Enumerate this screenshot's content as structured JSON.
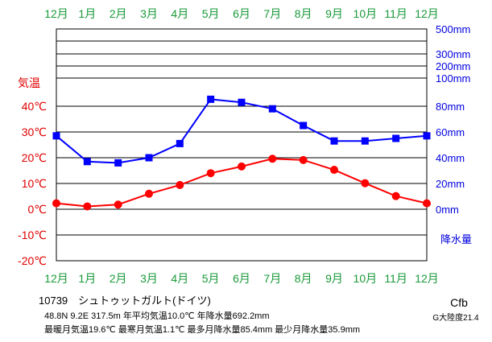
{
  "chart_data": {
    "type": "line",
    "months": [
      "12月",
      "1月",
      "2月",
      "3月",
      "4月",
      "5月",
      "6月",
      "7月",
      "8月",
      "9月",
      "10月",
      "11月",
      "12月"
    ],
    "series": [
      {
        "name": "気温",
        "unit": "℃",
        "color": "#ff0000",
        "marker": "circle",
        "values": [
          2.3,
          1.1,
          1.8,
          6.0,
          9.4,
          14.0,
          16.6,
          19.6,
          19.1,
          15.3,
          10.1,
          5.1,
          2.3
        ]
      },
      {
        "name": "降水量",
        "unit": "mm",
        "color": "#0000ff",
        "marker": "square",
        "values": [
          57.0,
          37.0,
          36.0,
          40.0,
          51.0,
          85.4,
          83.0,
          78.0,
          65.0,
          53.0,
          53.0,
          55.0,
          57.0
        ]
      }
    ],
    "temperature_axis": {
      "label": "気温",
      "ticks": [
        "40℃",
        "30℃",
        "20℃",
        "10℃",
        "0℃",
        "-10℃",
        "-20℃"
      ],
      "ylim": [
        -20,
        40
      ]
    },
    "precipitation_axis": {
      "label": "降水量",
      "ticks": [
        "500mm",
        "300mm",
        "200mm",
        "100mm",
        "80mm",
        "60mm",
        "40mm",
        "20mm",
        "0mm"
      ],
      "linear_range": [
        0,
        100
      ],
      "upper_bands": [
        100,
        200,
        300,
        400,
        500
      ]
    },
    "grid": true
  },
  "station": {
    "line1": "10739　シュトゥットガルト(ドイツ)",
    "line2": "48.8N  9.2E  317.5m 年平均気温10.0℃ 年降水量692.2mm",
    "line3": "最暖月気温19.6℃ 最寒月気温1.1℃ 最多月降水量85.4mm 最少月降水量35.9mm",
    "climate_class": "Cfb",
    "continentality": "G大陸度21.4"
  },
  "colors": {
    "month_labels": "#1a9a3a",
    "temperature": "#e00000",
    "precipitation": "#0000e0",
    "grid": "#000000"
  }
}
